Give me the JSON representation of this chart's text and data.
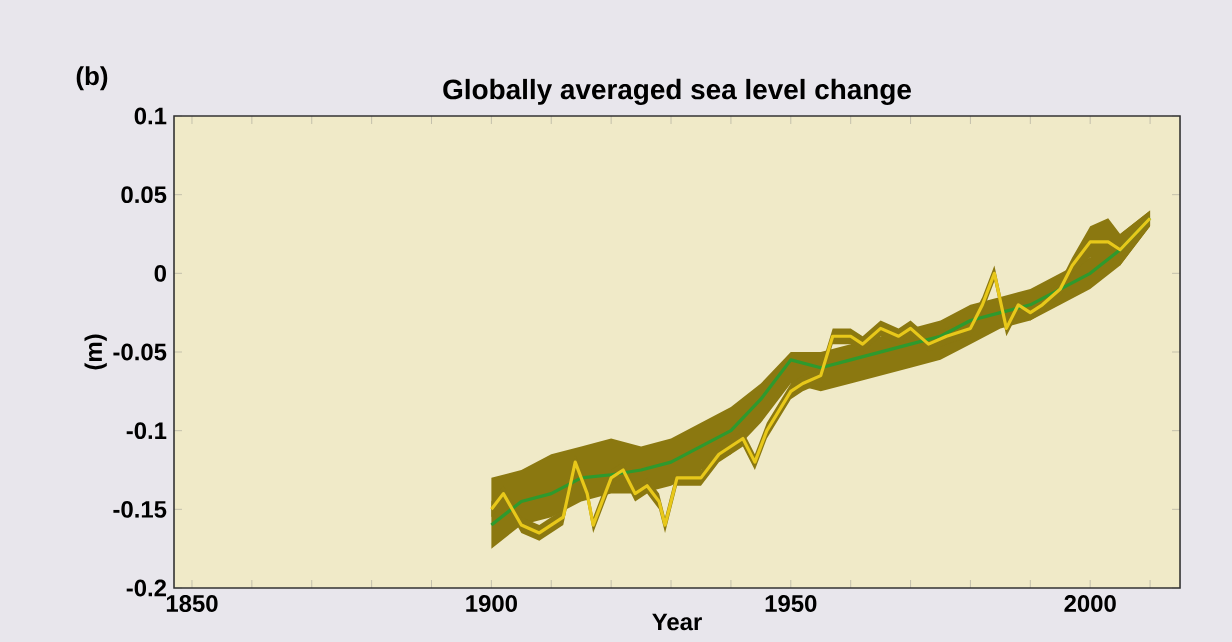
{
  "chart_data": {
    "type": "line",
    "title": "Globally averaged sea level change",
    "xlabel": "Year",
    "ylabel": "(m)",
    "annotations": [
      "(b)"
    ],
    "xlim": [
      1847,
      2015
    ],
    "xticks": [
      1850,
      {
        "value": 1860,
        "label": null
      },
      {
        "value": 1870,
        "label": null
      },
      {
        "value": 1880,
        "label": null
      },
      {
        "value": 1890,
        "label": null
      },
      1900,
      {
        "value": 1910,
        "label": null
      },
      {
        "value": 1920,
        "label": null
      },
      {
        "value": 1930,
        "label": null
      },
      {
        "value": 1940,
        "label": null
      },
      1950,
      {
        "value": 1960,
        "label": null
      },
      {
        "value": 1970,
        "label": null
      },
      {
        "value": 1980,
        "label": null
      },
      {
        "value": 1990,
        "label": null
      },
      2000,
      {
        "value": 2010,
        "label": null
      }
    ],
    "ylim": [
      -0.2,
      0.1
    ],
    "yticks": [
      -0.2,
      -0.15,
      -0.1,
      -0.05,
      0,
      0.05,
      0.1
    ],
    "series": [
      {
        "color": "#2e9a2e",
        "x": [
          1900,
          1905,
          1910,
          1915,
          1920,
          1925,
          1930,
          1935,
          1940,
          1945,
          1950,
          1955,
          1960,
          1965,
          1970,
          1975,
          1980,
          1985,
          1990,
          1995,
          2000,
          2005,
          2010
        ],
        "values": [
          -0.16,
          -0.145,
          -0.14,
          -0.13,
          -0.128,
          -0.125,
          -0.12,
          -0.11,
          -0.1,
          -0.08,
          -0.055,
          -0.06,
          -0.055,
          -0.05,
          -0.045,
          -0.04,
          -0.03,
          -0.025,
          -0.02,
          -0.01,
          0.0,
          0.015,
          0.035
        ],
        "upper": [
          -0.13,
          -0.125,
          -0.115,
          -0.11,
          -0.105,
          -0.11,
          -0.105,
          -0.095,
          -0.085,
          -0.07,
          -0.05,
          -0.05,
          -0.045,
          -0.04,
          -0.035,
          -0.03,
          -0.02,
          -0.015,
          -0.01,
          0.0,
          0.01,
          0.025,
          0.04
        ],
        "lower": [
          -0.175,
          -0.16,
          -0.155,
          -0.145,
          -0.14,
          -0.14,
          -0.135,
          -0.125,
          -0.115,
          -0.095,
          -0.07,
          -0.075,
          -0.07,
          -0.065,
          -0.06,
          -0.055,
          -0.045,
          -0.035,
          -0.03,
          -0.02,
          -0.01,
          0.005,
          0.03
        ]
      },
      {
        "color": "#e8c81a",
        "x": [
          1900,
          1902,
          1905,
          1908,
          1910,
          1912,
          1914,
          1916,
          1917,
          1920,
          1922,
          1924,
          1926,
          1928,
          1929,
          1931,
          1935,
          1938,
          1942,
          1944,
          1946,
          1950,
          1952,
          1955,
          1957,
          1960,
          1962,
          1965,
          1968,
          1970,
          1973,
          1976,
          1980,
          1982,
          1984,
          1986,
          1988,
          1990,
          1992,
          1995,
          1997,
          2000,
          2003,
          2005,
          2010
        ],
        "values": [
          -0.15,
          -0.14,
          -0.16,
          -0.165,
          -0.16,
          -0.155,
          -0.12,
          -0.14,
          -0.16,
          -0.13,
          -0.125,
          -0.14,
          -0.135,
          -0.145,
          -0.16,
          -0.13,
          -0.13,
          -0.115,
          -0.105,
          -0.12,
          -0.1,
          -0.075,
          -0.07,
          -0.065,
          -0.04,
          -0.04,
          -0.045,
          -0.035,
          -0.04,
          -0.035,
          -0.045,
          -0.04,
          -0.035,
          -0.02,
          0.0,
          -0.035,
          -0.02,
          -0.025,
          -0.02,
          -0.01,
          0.005,
          0.02,
          0.02,
          0.015,
          0.035
        ],
        "upper": [
          -0.145,
          -0.135,
          -0.155,
          -0.16,
          -0.155,
          -0.15,
          -0.115,
          -0.135,
          -0.155,
          -0.125,
          -0.12,
          -0.135,
          -0.13,
          -0.14,
          -0.155,
          -0.125,
          -0.125,
          -0.11,
          -0.1,
          -0.115,
          -0.095,
          -0.07,
          -0.065,
          -0.06,
          -0.035,
          -0.035,
          -0.04,
          -0.03,
          -0.035,
          -0.03,
          -0.04,
          -0.035,
          -0.03,
          -0.015,
          0.005,
          -0.03,
          -0.015,
          -0.02,
          -0.015,
          -0.005,
          0.01,
          0.03,
          0.035,
          0.025,
          0.04
        ],
        "lower": [
          -0.155,
          -0.145,
          -0.165,
          -0.17,
          -0.165,
          -0.16,
          -0.125,
          -0.145,
          -0.165,
          -0.135,
          -0.13,
          -0.145,
          -0.14,
          -0.15,
          -0.165,
          -0.135,
          -0.135,
          -0.12,
          -0.11,
          -0.125,
          -0.105,
          -0.08,
          -0.075,
          -0.07,
          -0.045,
          -0.045,
          -0.05,
          -0.04,
          -0.045,
          -0.04,
          -0.05,
          -0.045,
          -0.04,
          -0.025,
          -0.005,
          -0.04,
          -0.025,
          -0.03,
          -0.025,
          -0.015,
          0.0,
          0.01,
          0.01,
          0.005,
          0.03
        ]
      }
    ]
  }
}
